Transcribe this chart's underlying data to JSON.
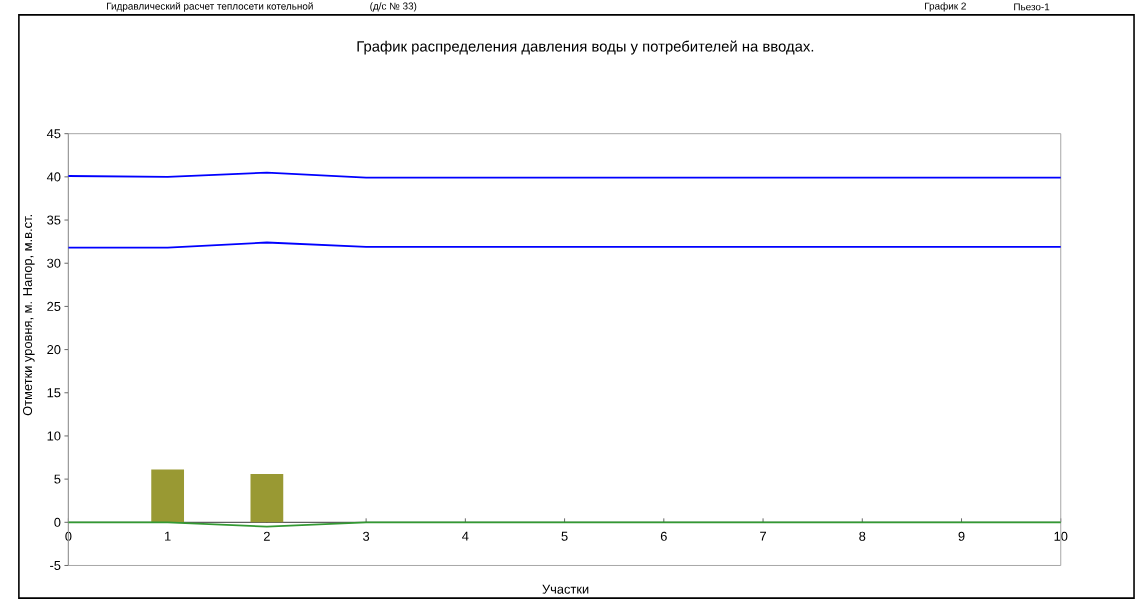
{
  "chart_data": {
    "type": "line",
    "title": "График распределения давления воды у потребителей на вводах.",
    "xlabel": "Участки",
    "ylabel": "Отметки уровня, м. Напор, м.в.ст.",
    "annotations": [
      "Гидравлический расчет теплосети котельной",
      "(д/с № 33)",
      "График 2",
      "Пьезо-1"
    ],
    "x": [
      0,
      1,
      2,
      3,
      4,
      5,
      6,
      7,
      8,
      9,
      10
    ],
    "series": [
      {
        "type": "bar",
        "color": "#999933",
        "x": [
          1,
          2
        ],
        "values": [
          6.1,
          5.6
        ]
      },
      {
        "color": "#0000ff",
        "values": [
          40.1,
          40.0,
          40.5,
          39.9,
          39.9,
          39.9,
          39.9,
          39.9,
          39.9,
          39.9,
          39.9
        ]
      },
      {
        "color": "#0000ff",
        "values": [
          31.8,
          31.8,
          32.4,
          31.9,
          31.9,
          31.9,
          31.9,
          31.9,
          31.9,
          31.9,
          31.9
        ]
      },
      {
        "color": "#339933",
        "values": [
          0,
          0,
          -0.5,
          0,
          0,
          0,
          0,
          0,
          0,
          0,
          0
        ]
      }
    ],
    "xlim": [
      0,
      10
    ],
    "ylim": [
      -5,
      45
    ],
    "xticks": [
      0,
      1,
      2,
      3,
      4,
      5,
      6,
      7,
      8,
      9,
      10
    ],
    "yticks": [
      -5,
      0,
      5,
      10,
      15,
      20,
      25,
      30,
      35,
      40,
      45
    ]
  }
}
